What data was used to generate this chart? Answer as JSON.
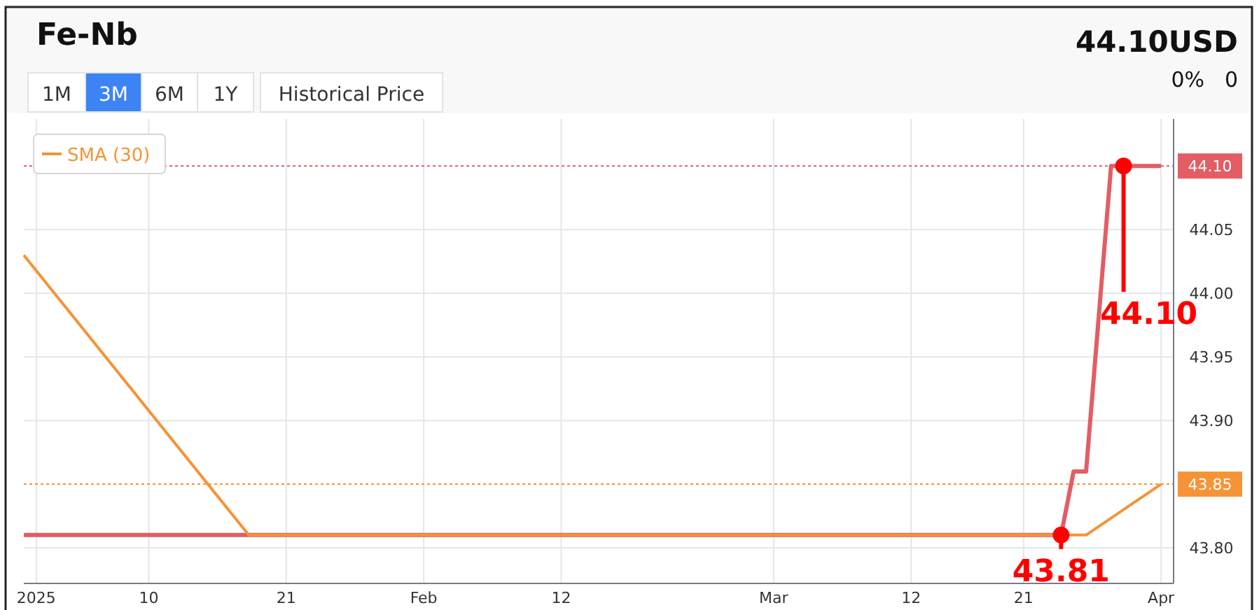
{
  "chart_data": {
    "type": "line",
    "title": "Fe-Nb",
    "annotations": [
      "1M",
      "3M",
      "6M",
      "1Y",
      "Historical Price",
      "44.10USD",
      "0%",
      "0",
      {
        "text": "44.10",
        "x": "2025-03-29",
        "y": 44.1
      },
      {
        "text": "43.81",
        "x": "2025-03-24",
        "y": 43.81
      }
    ],
    "xlim": [
      "2024-12-31",
      "2025-04-02"
    ],
    "xticks": [
      {
        "value": "2025-01-01",
        "label": "2025"
      },
      {
        "value": "2025-01-10",
        "label": "10"
      },
      {
        "value": "2025-01-21",
        "label": "21"
      },
      {
        "value": "2025-02-01",
        "label": "Feb"
      },
      {
        "value": "2025-02-12",
        "label": "12"
      },
      {
        "value": "2025-03-01",
        "label": "Mar"
      },
      {
        "value": "2025-03-12",
        "label": "12"
      },
      {
        "value": "2025-03-21",
        "label": "21"
      },
      {
        "value": "2025-04-01",
        "label": "Apr"
      }
    ],
    "ylim": [
      43.772,
      44.137
    ],
    "yticks": [
      {
        "value": 43.8,
        "label": "43.80"
      },
      {
        "value": 43.9,
        "label": "43.90"
      },
      {
        "value": 43.95,
        "label": "43.95"
      },
      {
        "value": 44.0,
        "label": "44.00"
      },
      {
        "value": 44.05,
        "label": "44.05"
      }
    ],
    "series": [
      {
        "color": "#e45c64",
        "x": [
          "2024-12-31",
          "2025-03-24",
          "2025-03-25",
          "2025-03-26",
          "2025-03-28",
          "2025-04-01"
        ],
        "values": [
          43.81,
          43.81,
          43.86,
          43.86,
          44.1,
          44.1
        ]
      },
      {
        "name": "SMA (30)",
        "color": "#f59337",
        "x": [
          "2024-12-31",
          "2025-01-18",
          "2025-03-26",
          "2025-04-01"
        ],
        "values": [
          44.03,
          43.81,
          43.81,
          43.85
        ]
      }
    ],
    "ref_lines": [
      {
        "axis": "y",
        "value": 44.1,
        "label": "44.10",
        "color": "#e45c64",
        "line_style": "dotted"
      },
      {
        "axis": "y",
        "value": 43.85,
        "label": "43.85",
        "color": "#f59337",
        "line_style": "dotted"
      }
    ],
    "grid": true,
    "legend": "top left",
    "marker": "none",
    "line_style": "solid"
  }
}
